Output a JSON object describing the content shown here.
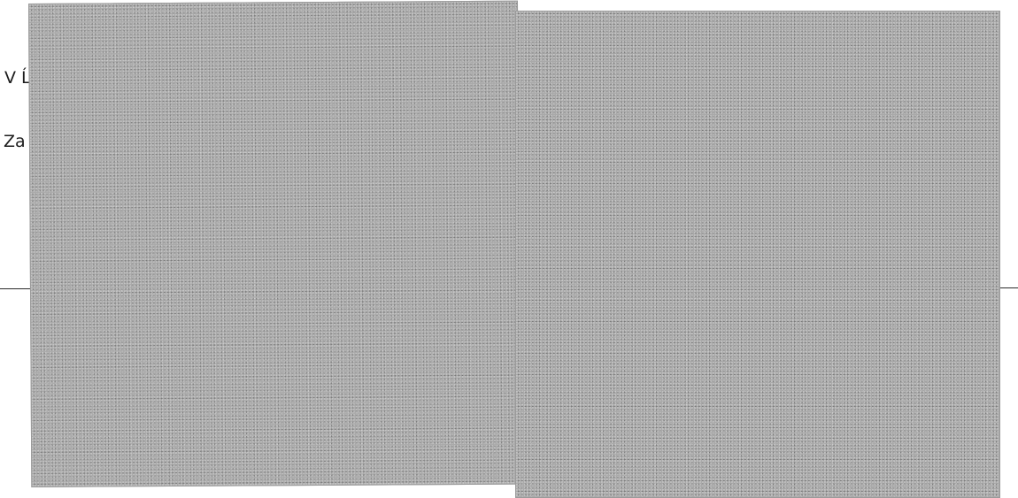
{
  "document": {
    "visible_text": {
      "line_1": "V Ĺ",
      "line_2": "Za"
    }
  },
  "colors": {
    "background": "#ffffff",
    "text": "#1c1c1c",
    "redaction": "#a9a9a9",
    "rule": "#2a2a2a"
  }
}
